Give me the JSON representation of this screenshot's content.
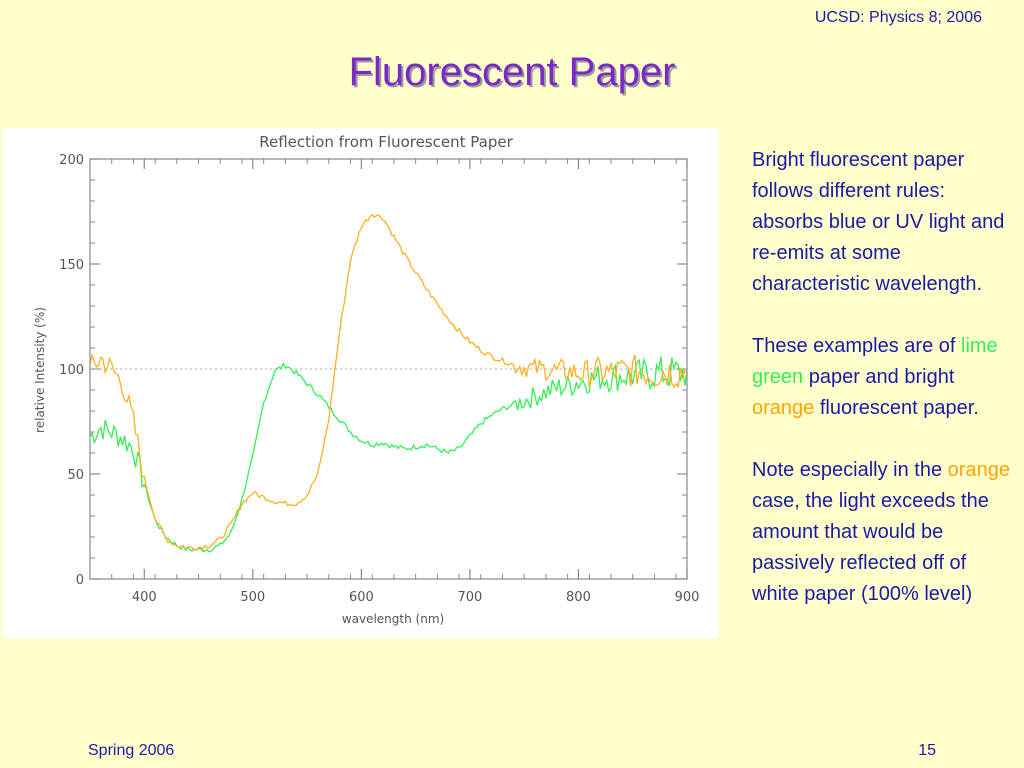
{
  "header": {
    "course": "UCSD: Physics 8; 2006"
  },
  "slide": {
    "title": "Fluorescent Paper"
  },
  "body": {
    "p1": "Bright fluorescent paper follows different rules: absorbs blue or UV light and re-emits at some characteristic wavelength.",
    "p2_before": "These examples are of ",
    "p2_green": "lime green",
    "p2_mid": " paper and bright ",
    "p2_orange": "orange",
    "p2_after": " fluorescent paper.",
    "p3_before": "Note especially in the ",
    "p3_orange": "orange",
    "p3_after": " case, the light exceeds the amount that would be passively reflected off of white paper (100% level)"
  },
  "footer": {
    "left": "Spring 2006",
    "right": "15"
  },
  "colors": {
    "green_series": "#33ee55",
    "orange_series": "#ffb020",
    "text": "#1a1aa8",
    "title": "#7a28c8"
  },
  "chart_data": {
    "type": "line",
    "title": "Reflection from Fluorescent Paper",
    "xlabel": "wavelength (nm)",
    "ylabel": "relative Intensity (%)",
    "xlim": [
      350,
      900
    ],
    "ylim": [
      0,
      200
    ],
    "xticks": [
      400,
      500,
      600,
      700,
      800,
      900
    ],
    "yticks": [
      0,
      50,
      100,
      150,
      200
    ],
    "reference_line": 100,
    "grid": false,
    "legend": "none",
    "series": [
      {
        "color": "#33ee55",
        "x": [
          350,
          360,
          370,
          380,
          390,
          400,
          410,
          420,
          430,
          440,
          450,
          460,
          470,
          480,
          490,
          500,
          510,
          520,
          530,
          540,
          550,
          560,
          570,
          580,
          590,
          600,
          610,
          620,
          630,
          640,
          650,
          660,
          670,
          680,
          690,
          700,
          710,
          720,
          730,
          740,
          750,
          760,
          770,
          780,
          790,
          800,
          810,
          820,
          830,
          840,
          850,
          860,
          870,
          880,
          890,
          900
        ],
        "y": [
          68,
          72,
          70,
          67,
          62,
          45,
          28,
          20,
          16,
          14,
          14,
          14,
          16,
          22,
          38,
          58,
          84,
          99,
          102,
          98,
          93,
          88,
          82,
          76,
          70,
          66,
          64,
          65,
          63,
          62,
          63,
          64,
          62,
          60,
          62,
          68,
          74,
          78,
          81,
          83,
          85,
          87,
          89,
          91,
          92,
          94,
          95,
          96,
          96,
          97,
          97,
          97,
          98,
          98,
          98,
          99
        ]
      },
      {
        "color": "#ffb020",
        "x": [
          350,
          360,
          370,
          380,
          390,
          400,
          410,
          420,
          430,
          440,
          450,
          460,
          470,
          480,
          490,
          500,
          510,
          520,
          530,
          540,
          550,
          560,
          570,
          580,
          590,
          600,
          610,
          620,
          630,
          640,
          650,
          660,
          670,
          680,
          690,
          700,
          710,
          720,
          730,
          740,
          750,
          760,
          770,
          780,
          790,
          800,
          810,
          820,
          830,
          840,
          850,
          860,
          870,
          880,
          890,
          900
        ],
        "y": [
          100,
          105,
          100,
          93,
          75,
          48,
          29,
          19,
          16,
          15,
          15,
          16,
          19,
          26,
          36,
          41,
          39,
          37,
          36,
          36,
          40,
          50,
          76,
          118,
          152,
          168,
          174,
          172,
          163,
          154,
          146,
          138,
          131,
          124,
          118,
          113,
          109,
          106,
          104,
          102,
          101,
          100,
          100,
          99,
          99,
          98,
          98,
          99,
          98,
          99,
          99,
          99,
          98,
          99,
          99,
          99
        ]
      }
    ]
  }
}
